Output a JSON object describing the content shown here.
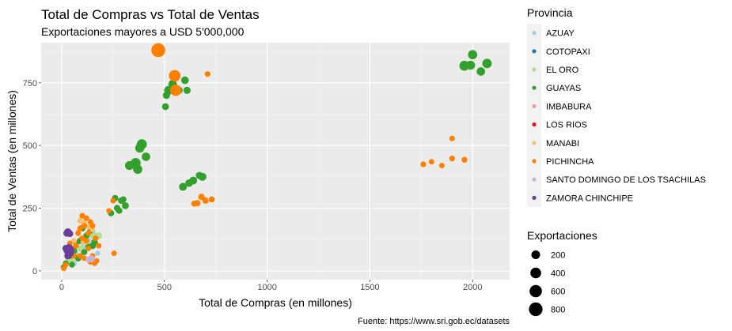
{
  "chart_data": {
    "type": "scatter",
    "title": "Total de Compras vs Total de Ventas",
    "subtitle": "Exportaciones mayores a USD 5'000,000",
    "xlabel": "Total de Compras (en millones)",
    "ylabel": "Total de Ventas (en millones)",
    "caption": "Fuente: https://www.sri.gob.ec/datasets",
    "xlim": [
      -100,
      2180
    ],
    "ylim": [
      -35,
      910
    ],
    "x_ticks": [
      0,
      500,
      1000,
      1500,
      2000
    ],
    "y_ticks": [
      0,
      250,
      500,
      750
    ],
    "grid": true,
    "legend_position": "right",
    "color_legend_title": "Provincia",
    "size_legend_title": "Exportaciones",
    "size_legend": [
      200,
      400,
      600,
      800
    ],
    "series": [
      {
        "name": "AZUAY",
        "color": "#A6CEE3",
        "points": [
          {
            "x": 40,
            "y": 48,
            "s": 60
          },
          {
            "x": 70,
            "y": 65,
            "s": 40
          },
          {
            "x": 100,
            "y": 85,
            "s": 50
          },
          {
            "x": 130,
            "y": 120,
            "s": 30
          },
          {
            "x": 150,
            "y": 150,
            "s": 80
          },
          {
            "x": 175,
            "y": 70,
            "s": 20
          },
          {
            "x": 60,
            "y": 30,
            "s": 30
          },
          {
            "x": 110,
            "y": 105,
            "s": 40
          }
        ]
      },
      {
        "name": "COTOPAXI",
        "color": "#1F78B4",
        "points": []
      },
      {
        "name": "EL ORO",
        "color": "#B2DF8A",
        "points": [
          {
            "x": 30,
            "y": 50,
            "s": 40
          },
          {
            "x": 60,
            "y": 70,
            "s": 60
          },
          {
            "x": 90,
            "y": 90,
            "s": 50
          },
          {
            "x": 120,
            "y": 110,
            "s": 40
          },
          {
            "x": 150,
            "y": 140,
            "s": 60
          },
          {
            "x": 180,
            "y": 140,
            "s": 80
          },
          {
            "x": 20,
            "y": 30,
            "s": 30
          },
          {
            "x": 50,
            "y": 40,
            "s": 30
          },
          {
            "x": 100,
            "y": 60,
            "s": 40
          }
        ]
      },
      {
        "name": "GUAYAS",
        "color": "#33A02C",
        "points": [
          {
            "x": 1960,
            "y": 818,
            "s": 320
          },
          {
            "x": 2000,
            "y": 862,
            "s": 240
          },
          {
            "x": 2070,
            "y": 827,
            "s": 260
          },
          {
            "x": 2040,
            "y": 795,
            "s": 180
          },
          {
            "x": 1990,
            "y": 820,
            "s": 220
          },
          {
            "x": 390,
            "y": 505,
            "s": 320
          },
          {
            "x": 380,
            "y": 490,
            "s": 240
          },
          {
            "x": 410,
            "y": 455,
            "s": 180
          },
          {
            "x": 360,
            "y": 430,
            "s": 320
          },
          {
            "x": 330,
            "y": 420,
            "s": 220
          },
          {
            "x": 370,
            "y": 405,
            "s": 240
          },
          {
            "x": 520,
            "y": 720,
            "s": 200
          },
          {
            "x": 540,
            "y": 745,
            "s": 180
          },
          {
            "x": 600,
            "y": 760,
            "s": 120
          },
          {
            "x": 510,
            "y": 700,
            "s": 100
          },
          {
            "x": 505,
            "y": 655,
            "s": 80
          },
          {
            "x": 570,
            "y": 720,
            "s": 120
          },
          {
            "x": 610,
            "y": 720,
            "s": 100
          },
          {
            "x": 685,
            "y": 375,
            "s": 140
          },
          {
            "x": 640,
            "y": 360,
            "s": 140
          },
          {
            "x": 620,
            "y": 350,
            "s": 120
          },
          {
            "x": 590,
            "y": 335,
            "s": 140
          },
          {
            "x": 670,
            "y": 380,
            "s": 100
          },
          {
            "x": 260,
            "y": 290,
            "s": 60
          },
          {
            "x": 290,
            "y": 280,
            "s": 60
          },
          {
            "x": 310,
            "y": 260,
            "s": 80
          },
          {
            "x": 240,
            "y": 230,
            "s": 50
          },
          {
            "x": 270,
            "y": 250,
            "s": 60
          },
          {
            "x": 300,
            "y": 285,
            "s": 50
          },
          {
            "x": 280,
            "y": 240,
            "s": 50
          },
          {
            "x": 90,
            "y": 120,
            "s": 60
          },
          {
            "x": 120,
            "y": 140,
            "s": 50
          },
          {
            "x": 150,
            "y": 100,
            "s": 70
          },
          {
            "x": 60,
            "y": 80,
            "s": 60
          },
          {
            "x": 40,
            "y": 60,
            "s": 50
          },
          {
            "x": 20,
            "y": 30,
            "s": 40
          },
          {
            "x": 10,
            "y": 15,
            "s": 40
          },
          {
            "x": 80,
            "y": 50,
            "s": 50
          },
          {
            "x": 110,
            "y": 75,
            "s": 40
          },
          {
            "x": 130,
            "y": 95,
            "s": 50
          },
          {
            "x": 160,
            "y": 115,
            "s": 60
          },
          {
            "x": 70,
            "y": 110,
            "s": 40
          },
          {
            "x": 100,
            "y": 170,
            "s": 60
          },
          {
            "x": 140,
            "y": 160,
            "s": 40
          },
          {
            "x": 50,
            "y": 25,
            "s": 40
          }
        ]
      },
      {
        "name": "IMBABURA",
        "color": "#FB9A99",
        "points": []
      },
      {
        "name": "LOS RIOS",
        "color": "#E31A1C",
        "points": []
      },
      {
        "name": "MANABI",
        "color": "#FDBF6F",
        "points": [
          {
            "x": 90,
            "y": 200,
            "s": 30
          },
          {
            "x": 110,
            "y": 190,
            "s": 30
          },
          {
            "x": 130,
            "y": 175,
            "s": 25
          },
          {
            "x": 150,
            "y": 165,
            "s": 20
          },
          {
            "x": 85,
            "y": 160,
            "s": 25
          },
          {
            "x": 60,
            "y": 120,
            "s": 25
          },
          {
            "x": 105,
            "y": 115,
            "s": 20
          }
        ]
      },
      {
        "name": "PICHINCHA",
        "color": "#FF7F00",
        "points": [
          {
            "x": 470,
            "y": 880,
            "s": 850
          },
          {
            "x": 550,
            "y": 778,
            "s": 500
          },
          {
            "x": 555,
            "y": 720,
            "s": 450
          },
          {
            "x": 710,
            "y": 785,
            "s": 30
          },
          {
            "x": 1900,
            "y": 528,
            "s": 25
          },
          {
            "x": 1760,
            "y": 425,
            "s": 30
          },
          {
            "x": 1800,
            "y": 435,
            "s": 25
          },
          {
            "x": 1850,
            "y": 420,
            "s": 25
          },
          {
            "x": 1900,
            "y": 448,
            "s": 30
          },
          {
            "x": 1960,
            "y": 443,
            "s": 35
          },
          {
            "x": 680,
            "y": 295,
            "s": 60
          },
          {
            "x": 700,
            "y": 280,
            "s": 50
          },
          {
            "x": 730,
            "y": 285,
            "s": 40
          },
          {
            "x": 660,
            "y": 270,
            "s": 50
          },
          {
            "x": 645,
            "y": 268,
            "s": 40
          },
          {
            "x": 250,
            "y": 280,
            "s": 25
          },
          {
            "x": 230,
            "y": 240,
            "s": 20
          },
          {
            "x": 255,
            "y": 70,
            "s": 25
          },
          {
            "x": 100,
            "y": 220,
            "s": 30
          },
          {
            "x": 120,
            "y": 210,
            "s": 30
          },
          {
            "x": 140,
            "y": 195,
            "s": 25
          },
          {
            "x": 150,
            "y": 180,
            "s": 30
          },
          {
            "x": 110,
            "y": 180,
            "s": 25
          },
          {
            "x": 90,
            "y": 170,
            "s": 25
          },
          {
            "x": 80,
            "y": 150,
            "s": 25
          },
          {
            "x": 130,
            "y": 150,
            "s": 25
          },
          {
            "x": 120,
            "y": 120,
            "s": 25
          },
          {
            "x": 100,
            "y": 130,
            "s": 25
          },
          {
            "x": 150,
            "y": 60,
            "s": 25
          },
          {
            "x": 170,
            "y": 40,
            "s": 20
          },
          {
            "x": 140,
            "y": 35,
            "s": 20
          },
          {
            "x": 160,
            "y": 30,
            "s": 20
          },
          {
            "x": 60,
            "y": 60,
            "s": 25
          },
          {
            "x": 90,
            "y": 60,
            "s": 25
          },
          {
            "x": 70,
            "y": 100,
            "s": 25
          },
          {
            "x": 40,
            "y": 110,
            "s": 25
          },
          {
            "x": 50,
            "y": 90,
            "s": 25
          },
          {
            "x": 130,
            "y": 90,
            "s": 25
          },
          {
            "x": 110,
            "y": 50,
            "s": 20
          },
          {
            "x": 30,
            "y": 70,
            "s": 20
          },
          {
            "x": 20,
            "y": 25,
            "s": 20
          },
          {
            "x": 10,
            "y": 10,
            "s": 20
          },
          {
            "x": 180,
            "y": 100,
            "s": 25
          },
          {
            "x": 165,
            "y": 130,
            "s": 25
          }
        ]
      },
      {
        "name": "SANTO DOMINGO DE LOS TSACHILAS",
        "color": "#CAB2D6",
        "points": [
          {
            "x": 145,
            "y": 48,
            "s": 90
          },
          {
            "x": 130,
            "y": 45,
            "s": 40
          }
        ]
      },
      {
        "name": "ZAMORA CHINCHIPE",
        "color": "#6A3D9A",
        "points": [
          {
            "x": 30,
            "y": 155,
            "s": 110
          },
          {
            "x": 25,
            "y": 150,
            "s": 80
          },
          {
            "x": 40,
            "y": 148,
            "s": 70
          },
          {
            "x": 35,
            "y": 92,
            "s": 120
          },
          {
            "x": 28,
            "y": 80,
            "s": 120
          },
          {
            "x": 42,
            "y": 70,
            "s": 100
          },
          {
            "x": 30,
            "y": 60,
            "s": 90
          },
          {
            "x": 20,
            "y": 90,
            "s": 80
          },
          {
            "x": 45,
            "y": 85,
            "s": 70
          }
        ]
      }
    ]
  }
}
